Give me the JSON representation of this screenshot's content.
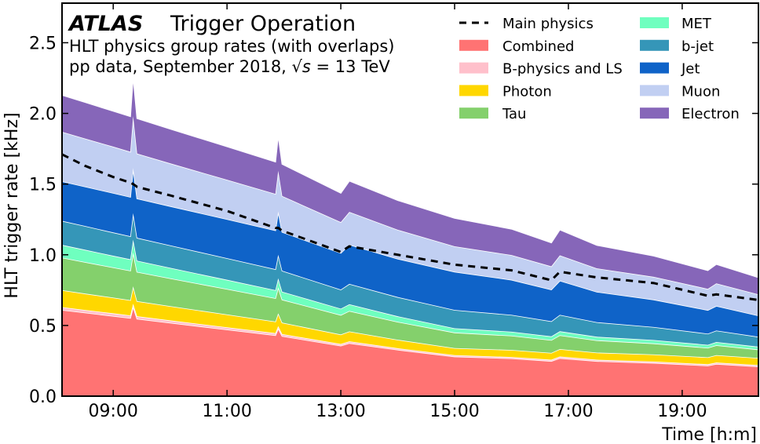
{
  "chart_data": {
    "type": "area",
    "stacked": true,
    "title_bold": "ATLAS",
    "title": "Trigger Operation",
    "subtitle_1": "HLT physics group rates (with overlaps)",
    "subtitle_2_prefix": "pp data, September 2018, ",
    "subtitle_2_sqrt": "√s",
    "subtitle_2_suffix": " = 13 TeV",
    "xlabel": "Time [h:m]",
    "ylabel": "HLT trigger rate [kHz]",
    "xlim": [
      8.1,
      20.34
    ],
    "ylim": [
      0,
      2.78
    ],
    "xticks": [
      9,
      11,
      13,
      15,
      17,
      19
    ],
    "xtick_labels": [
      "09:00",
      "11:00",
      "13:00",
      "15:00",
      "17:00",
      "19:00"
    ],
    "yticks": [
      0,
      0.5,
      1.0,
      1.5,
      2.0,
      2.5
    ],
    "ytick_labels": [
      "0.0",
      "0.5",
      "1.0",
      "1.5",
      "2.0",
      "2.5"
    ],
    "legend_position": "top-right",
    "x": [
      8.1,
      8.5,
      9.0,
      9.3,
      9.35,
      9.42,
      10.0,
      11.0,
      11.85,
      11.9,
      11.97,
      13.0,
      13.15,
      14.0,
      15.0,
      16.0,
      16.7,
      16.85,
      17.5,
      18.5,
      19.45,
      19.6,
      20.34
    ],
    "line": {
      "name": "Main physics",
      "color": "#000000",
      "values": [
        1.71,
        1.63,
        1.55,
        1.51,
        1.5,
        1.48,
        1.42,
        1.31,
        1.19,
        1.19,
        1.17,
        1.02,
        1.06,
        1.0,
        0.93,
        0.89,
        0.82,
        0.88,
        0.84,
        0.8,
        0.71,
        0.72,
        0.68
      ]
    },
    "series": [
      {
        "name": "Combined",
        "color": "#ff7373",
        "values": [
          0.61,
          0.591,
          0.567,
          0.553,
          0.633,
          0.547,
          0.519,
          0.471,
          0.431,
          0.479,
          0.425,
          0.357,
          0.375,
          0.328,
          0.28,
          0.267,
          0.248,
          0.269,
          0.248,
          0.235,
          0.216,
          0.228,
          0.21
        ]
      },
      {
        "name": "B-physics and LS",
        "color": "#ffc0cb",
        "values": [
          0.02,
          0.019,
          0.019,
          0.018,
          0.021,
          0.018,
          0.017,
          0.016,
          0.015,
          0.016,
          0.014,
          0.012,
          0.013,
          0.011,
          0.01,
          0.01,
          0.01,
          0.011,
          0.01,
          0.01,
          0.01,
          0.01,
          0.01
        ]
      },
      {
        "name": "Photon",
        "color": "#ffd700",
        "values": [
          0.12,
          0.116,
          0.111,
          0.108,
          0.123,
          0.107,
          0.101,
          0.091,
          0.082,
          0.091,
          0.081,
          0.067,
          0.07,
          0.06,
          0.05,
          0.05,
          0.048,
          0.053,
          0.05,
          0.05,
          0.049,
          0.052,
          0.05
        ]
      },
      {
        "name": "Tau",
        "color": "#84d06c",
        "values": [
          0.23,
          0.223,
          0.214,
          0.209,
          0.239,
          0.207,
          0.197,
          0.18,
          0.165,
          0.184,
          0.163,
          0.138,
          0.145,
          0.127,
          0.11,
          0.101,
          0.091,
          0.098,
          0.087,
          0.078,
          0.067,
          0.07,
          0.06
        ]
      },
      {
        "name": "MET",
        "color": "#6fffbf",
        "values": [
          0.09,
          0.087,
          0.082,
          0.08,
          0.091,
          0.079,
          0.074,
          0.065,
          0.057,
          0.064,
          0.056,
          0.045,
          0.047,
          0.039,
          0.03,
          0.028,
          0.026,
          0.028,
          0.025,
          0.024,
          0.021,
          0.023,
          0.02
        ]
      },
      {
        "name": "b-jet",
        "color": "#3596b8",
        "values": [
          0.17,
          0.168,
          0.165,
          0.163,
          0.187,
          0.162,
          0.159,
          0.153,
          0.148,
          0.166,
          0.148,
          0.135,
          0.144,
          0.136,
          0.13,
          0.119,
          0.107,
          0.116,
          0.103,
          0.092,
          0.079,
          0.081,
          0.07
        ]
      },
      {
        "name": "Jet",
        "color": "#0f63c8",
        "values": [
          0.28,
          0.279,
          0.279,
          0.278,
          0.32,
          0.278,
          0.277,
          0.276,
          0.275,
          0.307,
          0.274,
          0.259,
          0.278,
          0.271,
          0.27,
          0.248,
          0.224,
          0.242,
          0.215,
          0.194,
          0.167,
          0.174,
          0.15
        ]
      },
      {
        "name": "Muon",
        "color": "#c1cff2",
        "values": [
          0.35,
          0.34,
          0.328,
          0.32,
          0.367,
          0.318,
          0.303,
          0.279,
          0.258,
          0.287,
          0.255,
          0.218,
          0.231,
          0.205,
          0.18,
          0.175,
          0.164,
          0.179,
          0.166,
          0.161,
          0.15,
          0.16,
          0.15
        ]
      },
      {
        "name": "Electron",
        "color": "#8666b9",
        "values": [
          0.26,
          0.257,
          0.252,
          0.25,
          0.286,
          0.249,
          0.244,
          0.235,
          0.227,
          0.254,
          0.226,
          0.206,
          0.22,
          0.209,
          0.2,
          0.185,
          0.168,
          0.182,
          0.164,
          0.149,
          0.131,
          0.136,
          0.12
        ]
      }
    ]
  }
}
